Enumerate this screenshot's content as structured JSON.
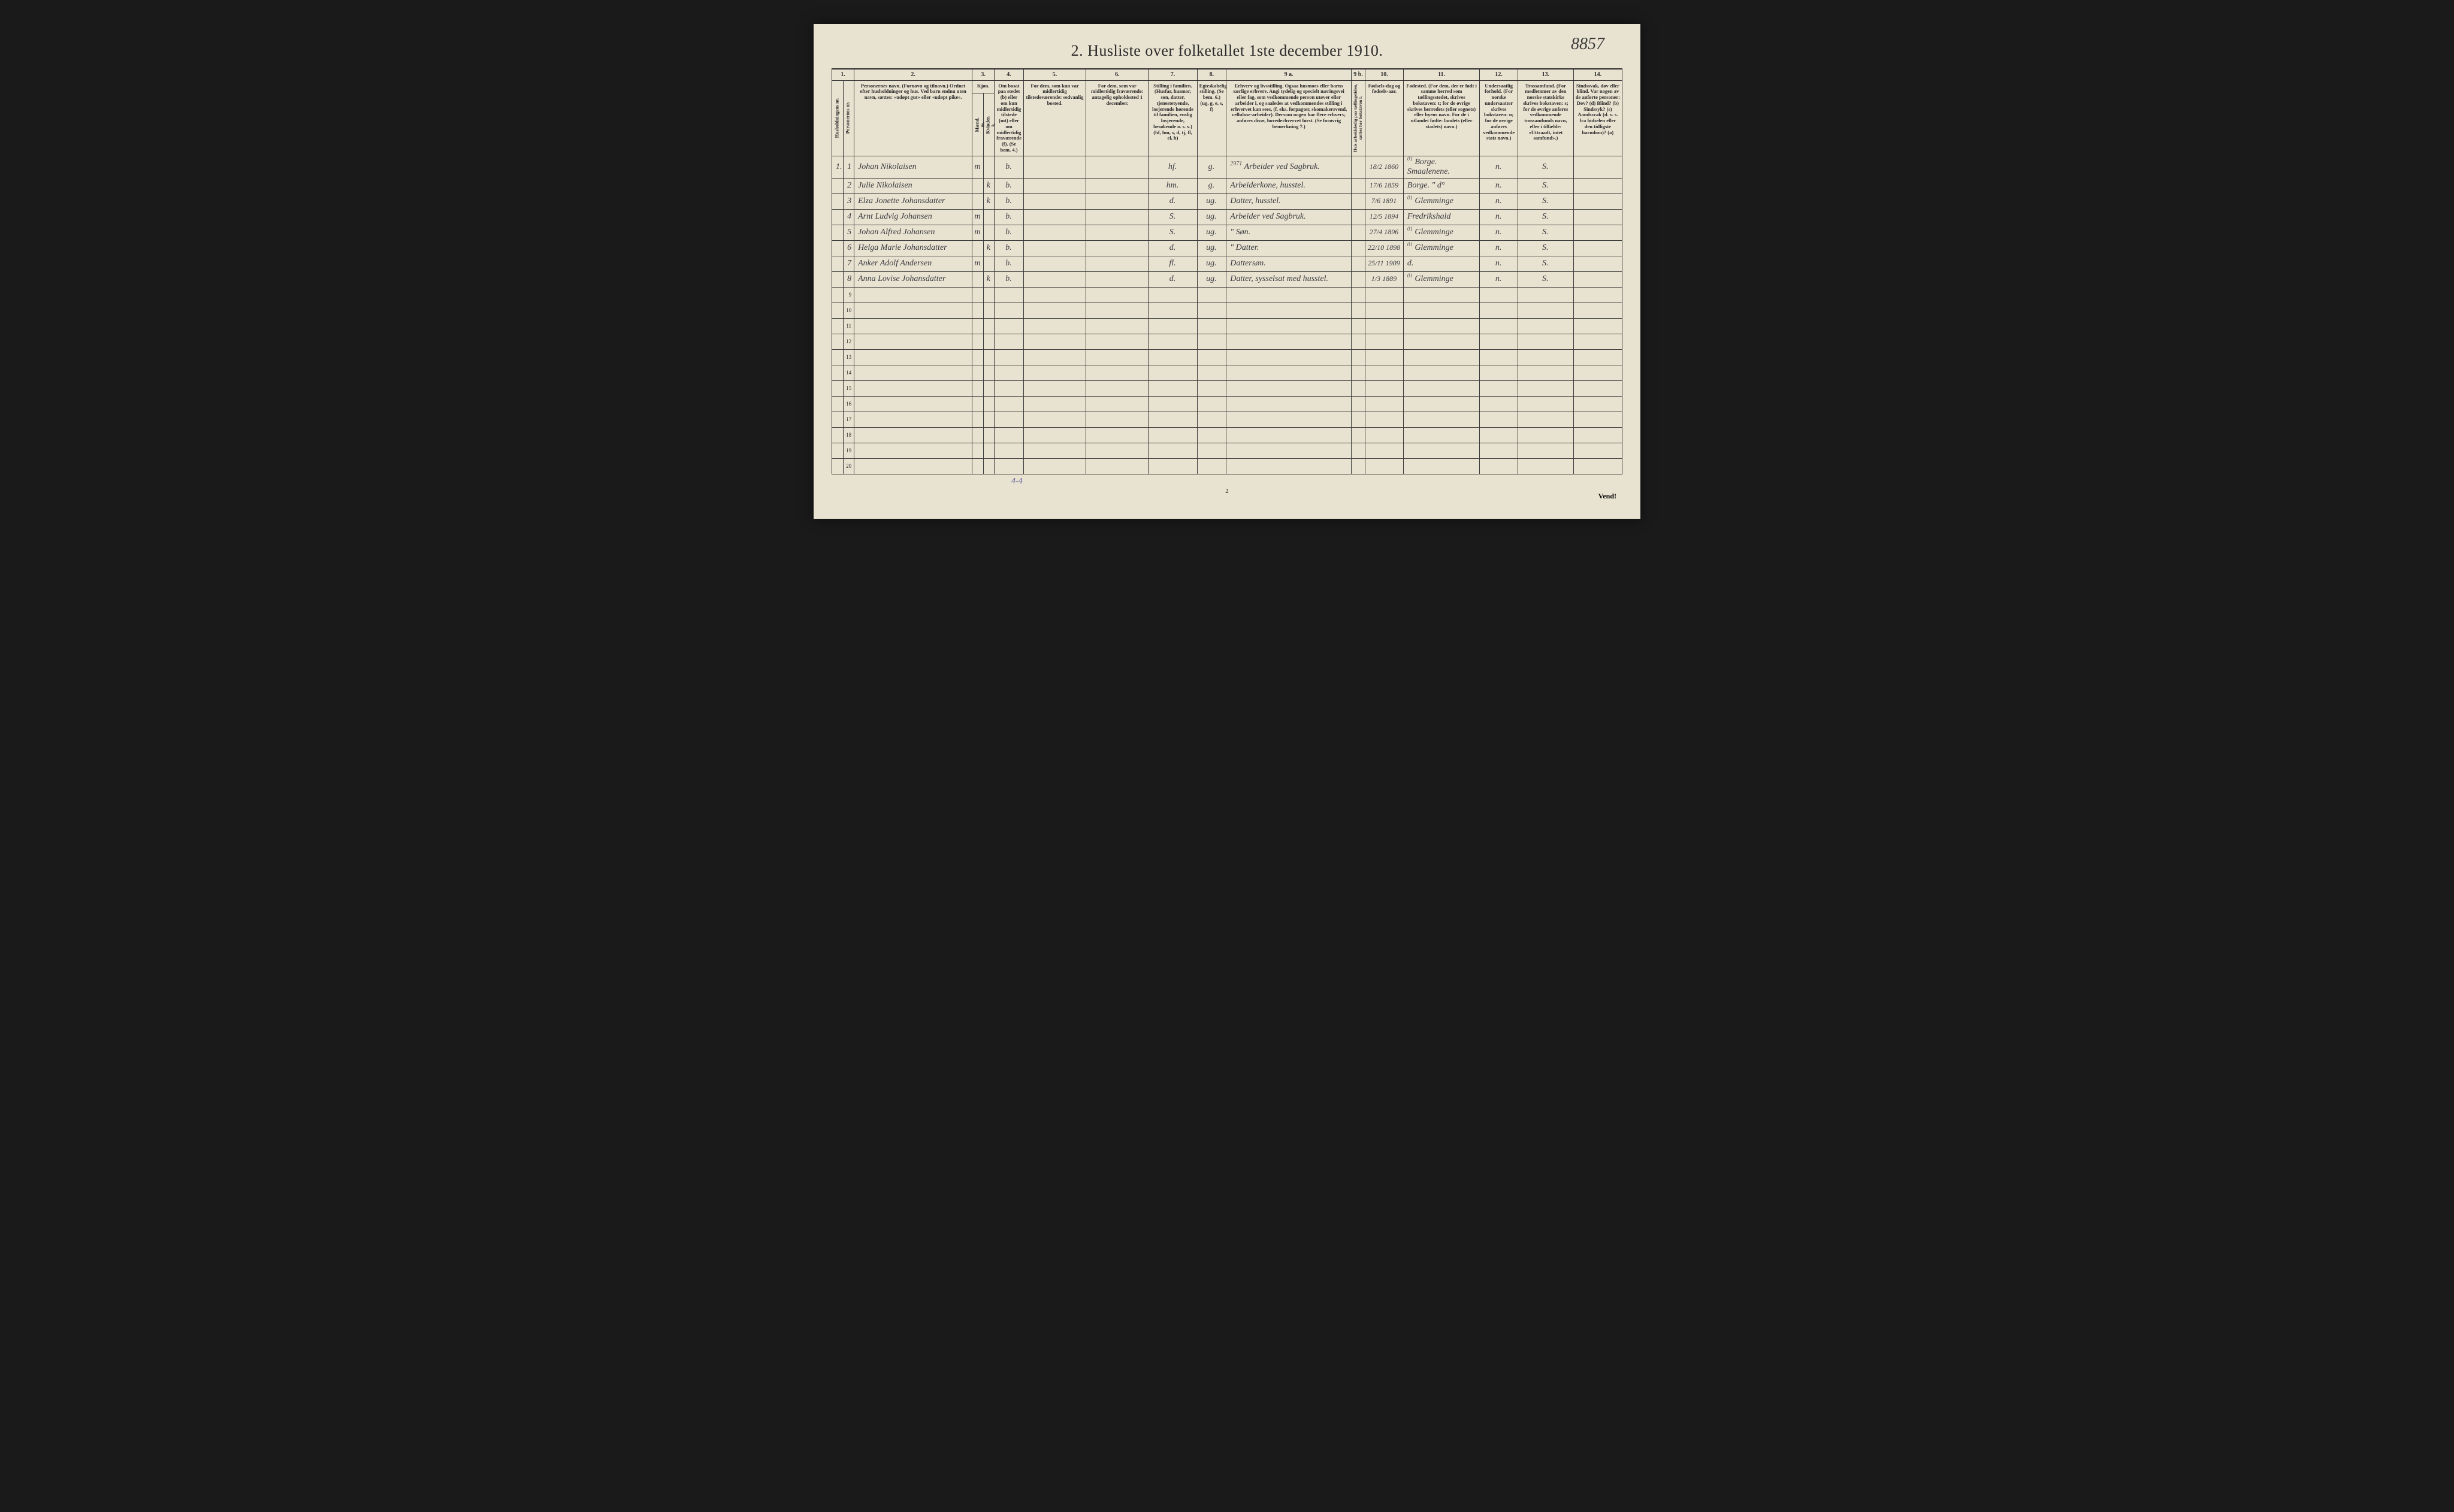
{
  "title": "2.  Husliste over folketallet 1ste december 1910.",
  "handwritten_page_number": "8857",
  "bottom_page_number": "2",
  "vend_label": "Vend!",
  "footer_annotation": "4-4",
  "columns": {
    "num_1": "1.",
    "num_2": "2.",
    "num_3": "3.",
    "num_4": "4.",
    "num_5": "5.",
    "num_6": "6.",
    "num_7": "7.",
    "num_8": "8.",
    "num_9a": "9 a.",
    "num_9b": "9 b.",
    "num_10": "10.",
    "num_11": "11.",
    "num_12": "12.",
    "num_13": "13.",
    "num_14": "14."
  },
  "headers": {
    "h1a": "Husholdningens nr.",
    "h1b": "Personernes nr.",
    "h2": "Personernes navn.\n(Fornavn og tilnavn.)\nOrdnet efter husholdninger og hus.\nVed barn endnu uten navn, sættes: «udøpt gut» eller «udøpt pike».",
    "h3": "Kjøn.",
    "h3a": "Mænd.",
    "h3b": "Kvinder.",
    "h3m": "m.",
    "h3k": "k.",
    "h4": "Om bosat paa stedet (b) eller om kun midlertidig tilstede (mt) eller om midlertidig fraværende (f).\n(Se bem. 4.)",
    "h5": "For dem, som kun var midlertidig tilstedeværende:\nsedvanlig bosted.",
    "h6": "For dem, som var midlertidig fraværende:\nantagelig opholdssted 1 december.",
    "h7": "Stilling i familien.\n(Husfar, husmor, søn, datter, tjenestetyende, losjerende hørende til familien, enslig losjerende, besøkende o. s. v.)\n(hf, hm, s, d, tj, fl, el, b)",
    "h8": "Egteskabelig stilling.\n(Se bem. 6.)\n(ug, g, e, s, f)",
    "h9a": "Erhverv og livsstilling.\nOgsaa husmors eller barns særlige erhverv. Angi tydelig og specielt næringsvei eller fag, som vedkommende person utøver eller arbeider i, og saaledes at vedkommendes stilling i erhvervet kan sees, (f. eks. forpagter, skomakersvend, cellulose-arbeider). Dersom nogen har flere erhverv, anføres disse, hovederhvervet først.\n(Se forøvrig bemerkning 7.)",
    "h9b": "Hvis arbeidsledig paa tællingstiden, sættes her bokstaven l.",
    "h10": "Fødsels-dag og fødsels-aar.",
    "h11": "Fødested.\n(For dem, der er født i samme herred som tællingsstedet, skrives bokstaven: t; for de øvrige skrives herredets (eller sognets) eller byens navn. For de i utlandet fødte: landets (eller stadets) navn.)",
    "h12": "Undersaatlig forhold.\n(For norske undersaatter skrives bokstaven: n; for de øvrige anføres vedkommende stats navn.)",
    "h13": "Trossamfund.\n(For medlemmer av den norske statskirke skrives bokstaven: s; for de øvrige anføres vedkommende trossamfunds navn, eller i tilfælde: «Uttraadt, intet samfund».)",
    "h14": "Sindssvak, døv eller blind.\nVar nogen av de anførte personer:\nDøv? (d)\nBlind? (b)\nSindssyk? (s)\nAandssvak (d. v. s. fra fødselen eller den tidligste barndom)? (a)"
  },
  "annotations": {
    "above_9a": "2971",
    "above_11": "01",
    "above_11_r3": "01",
    "above_11_r5": "01",
    "above_11_r6": "01",
    "above_11_r8": "01"
  },
  "rows": [
    {
      "hh": "1.",
      "pnr": "1",
      "name": "Johan Nikolaisen",
      "sex": "m",
      "res": "b.",
      "fam": "hf.",
      "mar": "g.",
      "occ": "Arbeider ved Sagbruk.",
      "dob": "18/2 1860",
      "birthplace": "Borge. Smaalenene.",
      "nat": "n.",
      "rel": "S."
    },
    {
      "hh": "",
      "pnr": "2",
      "name": "Julie Nikolaisen",
      "sex": "k",
      "res": "b.",
      "fam": "hm.",
      "mar": "g.",
      "occ": "Arbeiderkone, husstel.",
      "dob": "17/6 1859",
      "birthplace": "Borge.  \"   d°",
      "nat": "n.",
      "rel": "S."
    },
    {
      "hh": "",
      "pnr": "3",
      "name": "Elza Jonette Johansdatter",
      "sex": "k",
      "res": "b.",
      "fam": "d.",
      "mar": "ug.",
      "occ": "Datter, husstel.",
      "dob": "7/6 1891",
      "birthplace": "Glemminge",
      "nat": "n.",
      "rel": "S."
    },
    {
      "hh": "",
      "pnr": "4",
      "name": "Arnt Ludvig Johansen",
      "sex": "m",
      "res": "b.",
      "fam": "S.",
      "mar": "ug.",
      "occ": "Arbeider ved Sagbruk.",
      "dob": "12/5 1894",
      "birthplace": "Fredrikshald",
      "nat": "n.",
      "rel": "S."
    },
    {
      "hh": "",
      "pnr": "5",
      "name": "Johan Alfred Johansen",
      "sex": "m",
      "res": "b.",
      "fam": "S.",
      "mar": "ug.",
      "occ": "\"   Søn.",
      "dob": "27/4 1896",
      "birthplace": "Glemminge",
      "nat": "n.",
      "rel": "S."
    },
    {
      "hh": "",
      "pnr": "6",
      "name": "Helga Marie Johansdatter",
      "sex": "k",
      "res": "b.",
      "fam": "d.",
      "mar": "ug.",
      "occ": "\"   Datter.",
      "dob": "22/10 1898",
      "birthplace": "Glemminge",
      "nat": "n.",
      "rel": "S."
    },
    {
      "hh": "",
      "pnr": "7",
      "name": "Anker Adolf Andersen",
      "sex": "m",
      "res": "b.",
      "fam": "fl.",
      "mar": "ug.",
      "occ": "Dattersøn.",
      "dob": "25/11 1909",
      "birthplace": "d.",
      "nat": "n.",
      "rel": "S."
    },
    {
      "hh": "",
      "pnr": "8",
      "name": "Anna Lovise Johansdatter",
      "sex": "k",
      "res": "b.",
      "fam": "d.",
      "mar": "ug.",
      "occ": "Datter, sysselsat med husstel.",
      "dob": "1/3 1889",
      "birthplace": "Glemminge",
      "nat": "n.",
      "rel": "S."
    }
  ],
  "empty_rows": [
    "9",
    "10",
    "11",
    "12",
    "13",
    "14",
    "15",
    "16",
    "17",
    "18",
    "19",
    "20"
  ],
  "style": {
    "page_bg": "#e8e2d0",
    "outer_bg": "#1a1a1a",
    "ink_color": "#2a2a2a",
    "handwriting_color": "#3a3a40",
    "annotation_color": "#5a5aa0",
    "border_color": "#3a3a3a",
    "title_fontsize": 26,
    "header_fontsize": 8.5,
    "data_fontsize": 14,
    "col_widths_pct": [
      1.6,
      1.6,
      17,
      1.6,
      1.6,
      4.2,
      9,
      9,
      7,
      4.2,
      18,
      2,
      5.5,
      11,
      5.5,
      8,
      7
    ]
  }
}
